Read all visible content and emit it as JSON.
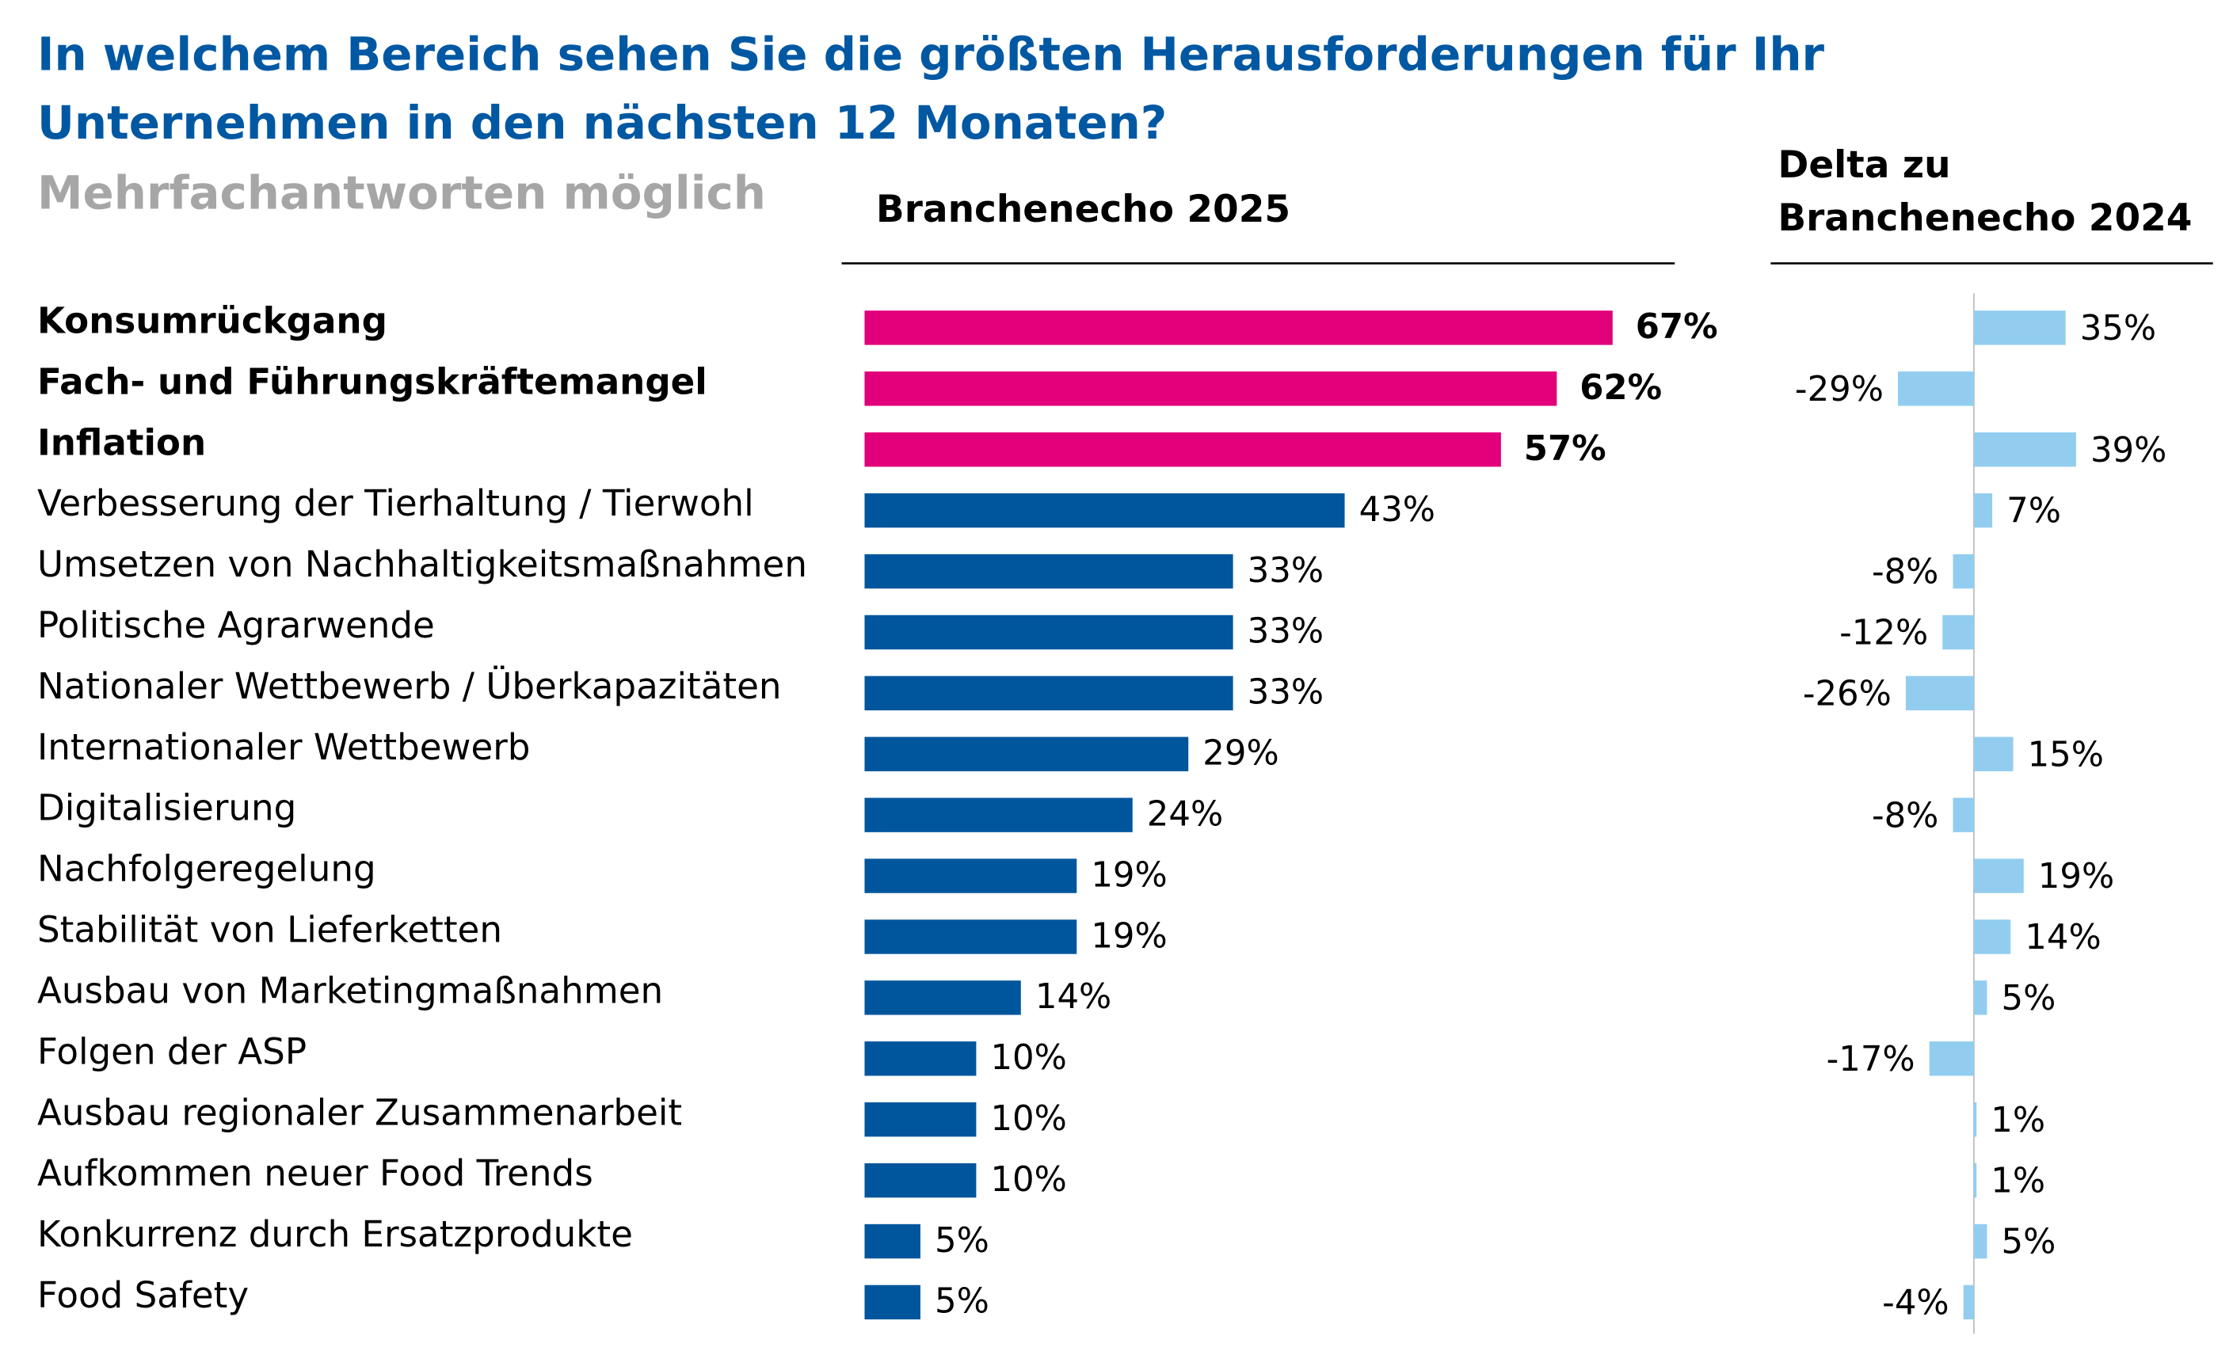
{
  "title": [
    "In welchem Bereich sehen Sie die größten Herausforderungen für Ihr",
    "Unternehmen in den nächsten 12 Monaten?"
  ],
  "subtitle": "Mehrfachantworten möglich",
  "chart_data": [
    {
      "type": "bar",
      "orientation": "horizontal",
      "title": "Branchenecho 2025",
      "categories": [
        "Konsumrückgang",
        "Fach- und Führungskräftemangel",
        "Inflation",
        "Verbesserung der Tierhaltung / Tierwohl",
        "Umsetzen von Nachhaltigkeitsmaßnahmen",
        "Politische Agrarwende",
        "Nationaler Wettbewerb / Überkapazitäten",
        "Internationaler Wettbewerb",
        "Digitalisierung",
        "Nachfolgeregelung",
        "Stabilität von Lieferketten",
        "Ausbau von Marketingmaßnahmen",
        "Folgen der ASP",
        "Ausbau regionaler Zusammenarbeit",
        "Aufkommen neuer Food Trends",
        "Konkurrenz durch Ersatzprodukte",
        "Food Safety"
      ],
      "values": [
        67,
        62,
        57,
        43,
        33,
        33,
        33,
        29,
        24,
        19,
        19,
        14,
        10,
        10,
        10,
        5,
        5
      ],
      "value_labels": [
        "67%",
        "62%",
        "57%",
        "43%",
        "33%",
        "33%",
        "33%",
        "29%",
        "24%",
        "19%",
        "19%",
        "14%",
        "10%",
        "10%",
        "10%",
        "5%",
        "5%"
      ],
      "color": "#00569c",
      "highlight_color": "#e2007a",
      "highlight": [
        true,
        true,
        true,
        false,
        false,
        false,
        false,
        false,
        false,
        false,
        false,
        false,
        false,
        false,
        false,
        false,
        false
      ]
    },
    {
      "type": "bar",
      "orientation": "horizontal",
      "title": [
        "Delta zu",
        "Branchenecho 2024"
      ],
      "values": [
        35,
        -29,
        39,
        7,
        -8,
        -12,
        -26,
        15,
        -8,
        19,
        14,
        5,
        -17,
        1,
        1,
        5,
        -4
      ],
      "value_labels": [
        "35%",
        "-29%",
        "39%",
        "7%",
        "-8%",
        "-12%",
        "-26%",
        "15%",
        "-8%",
        "19%",
        "14%",
        "5%",
        "-17%",
        "1%",
        "1%",
        "5%",
        "-4%"
      ],
      "color": "#92cdf0"
    }
  ]
}
